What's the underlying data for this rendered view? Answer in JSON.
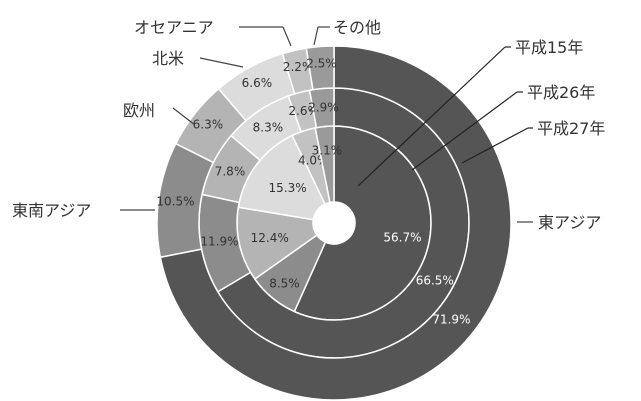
{
  "chart_data": {
    "type": "pie",
    "chart_style": "multi-ring donut",
    "categories": [
      "東アジア",
      "東南アジア",
      "欧州",
      "北米",
      "オセアニア",
      "その他"
    ],
    "series": [
      {
        "name": "平成15年",
        "values": [
          56.7,
          8.5,
          12.4,
          15.3,
          4.0,
          3.1
        ],
        "labels": [
          "56.7%",
          "8.5%",
          "12.4%",
          "15.3%",
          "4.0%",
          "3.1%"
        ]
      },
      {
        "name": "平成26年",
        "values": [
          66.5,
          11.9,
          7.8,
          8.3,
          2.6,
          2.9
        ],
        "labels": [
          "66.5%",
          "11.9%",
          "7.8%",
          "8.3%",
          "2.6%",
          "2.9%"
        ]
      },
      {
        "name": "平成27年",
        "values": [
          71.9,
          10.5,
          6.3,
          6.6,
          2.2,
          2.5
        ],
        "labels": [
          "71.9%",
          "10.5%",
          "6.3%",
          "6.6%",
          "2.2%",
          "2.5%"
        ]
      }
    ],
    "category_colors": [
      "#555555",
      "#8c8c8c",
      "#b4b4b4",
      "#dcdcdc",
      "#c2c2c2",
      "#9a9a9a"
    ],
    "legend": "callout labels around the chart"
  }
}
